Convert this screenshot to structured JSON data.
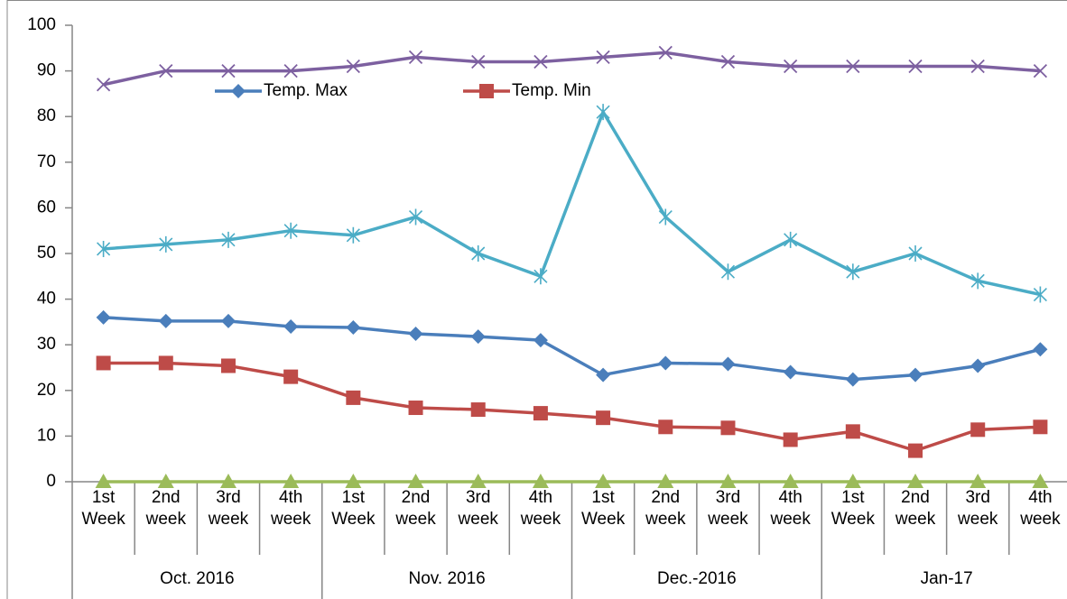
{
  "chart_data": {
    "type": "line",
    "categories": [
      "1st Week",
      "2nd week",
      "3rd week",
      "4th week",
      "1st Week",
      "2nd week",
      "3rd week",
      "4th week",
      "1st Week",
      "2nd week",
      "3rd week",
      "4th week",
      "1st Week",
      "2nd week",
      "3rd week",
      "4th week"
    ],
    "groups": [
      "Oct. 2016",
      "Nov. 2016",
      "Dec.-2016",
      "Jan-17"
    ],
    "series": [
      {
        "color": "#7d60a0",
        "marker": "x",
        "values": [
          87,
          90,
          90,
          90,
          91,
          93,
          92,
          92,
          93,
          94,
          92,
          91,
          91,
          91,
          91,
          90
        ]
      },
      {
        "color": "#4bacc6",
        "marker": "asterisk",
        "values": [
          51,
          52,
          53,
          55,
          54,
          58,
          50,
          45,
          81,
          58,
          46,
          53,
          46,
          50,
          44,
          41
        ]
      },
      {
        "name": "Temp. Max",
        "color": "#4a7ebb",
        "marker": "diamond",
        "values": [
          36,
          35.2,
          35.2,
          34,
          33.8,
          32.4,
          31.8,
          31,
          23.4,
          26,
          25.8,
          24,
          22.4,
          23.4,
          25.4,
          29
        ]
      },
      {
        "name": "Temp. Min",
        "color": "#be4b48",
        "marker": "square",
        "values": [
          26,
          26,
          25.4,
          23,
          18.4,
          16.2,
          15.8,
          15,
          14,
          12,
          11.8,
          9.2,
          11,
          6.8,
          11.4,
          12
        ]
      },
      {
        "color": "#9bbb59",
        "marker": "triangle",
        "values": [
          0,
          0,
          0,
          0,
          0,
          0,
          0,
          0,
          0,
          0,
          0,
          0,
          0,
          0,
          0,
          0
        ]
      }
    ],
    "ylim": [
      0,
      100
    ],
    "yticks": [
      0,
      10,
      20,
      30,
      40,
      50,
      60,
      70,
      80,
      90,
      100
    ],
    "grid": false
  }
}
